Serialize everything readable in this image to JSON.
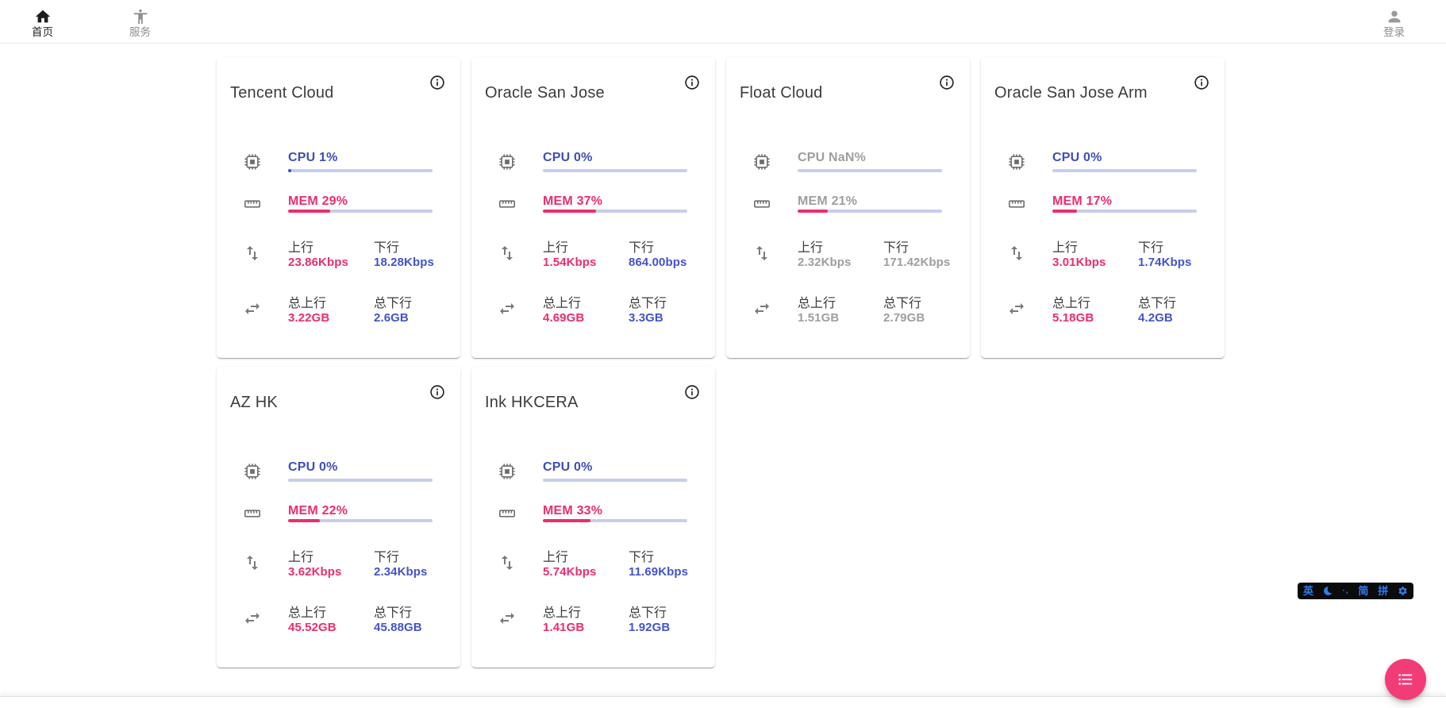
{
  "nav": {
    "items": [
      {
        "label": "首页",
        "icon": "home-icon",
        "active": true
      },
      {
        "label": "服务",
        "icon": "accessibility-icon",
        "active": false
      }
    ],
    "login": {
      "label": "登录",
      "icon": "person-icon"
    }
  },
  "stat_labels": {
    "up": "上行",
    "down": "下行",
    "total_up": "总上行",
    "total_down": "总下行"
  },
  "cards": [
    {
      "title": "Tencent Cloud",
      "cpu_text": "CPU 1%",
      "cpu_pct": 1,
      "mem_text": "MEM 29%",
      "mem_pct": 29,
      "offline": false,
      "up_value": "23.86Kbps",
      "down_value": "18.28Kbps",
      "total_up_value": "3.22GB",
      "total_down_value": "2.6GB"
    },
    {
      "title": "Oracle San Jose",
      "cpu_text": "CPU 0%",
      "cpu_pct": 0,
      "mem_text": "MEM 37%",
      "mem_pct": 37,
      "offline": false,
      "up_value": "1.54Kbps",
      "down_value": "864.00bps",
      "total_up_value": "4.69GB",
      "total_down_value": "3.3GB"
    },
    {
      "title": "Float Cloud",
      "cpu_text": "CPU NaN%",
      "cpu_pct": 0,
      "mem_text": "MEM 21%",
      "mem_pct": 21,
      "offline": true,
      "up_value": "2.32Kbps",
      "down_value": "171.42Kbps",
      "total_up_value": "1.51GB",
      "total_down_value": "2.79GB"
    },
    {
      "title": "Oracle San Jose Arm",
      "cpu_text": "CPU 0%",
      "cpu_pct": 0,
      "mem_text": "MEM 17%",
      "mem_pct": 17,
      "offline": false,
      "up_value": "3.01Kbps",
      "down_value": "1.74Kbps",
      "total_up_value": "5.18GB",
      "total_down_value": "4.2GB"
    },
    {
      "title": "AZ HK",
      "cpu_text": "CPU 0%",
      "cpu_pct": 0,
      "mem_text": "MEM 22%",
      "mem_pct": 22,
      "offline": false,
      "up_value": "3.62Kbps",
      "down_value": "2.34Kbps",
      "total_up_value": "45.52GB",
      "total_down_value": "45.88GB"
    },
    {
      "title": "Ink HKCERA",
      "cpu_text": "CPU 0%",
      "cpu_pct": 0,
      "mem_text": "MEM 33%",
      "mem_pct": 33,
      "offline": false,
      "up_value": "5.74Kbps",
      "down_value": "11.69Kbps",
      "total_up_value": "1.41GB",
      "total_down_value": "1.92GB"
    }
  ],
  "ime": {
    "lang": "英",
    "punct": "·,",
    "simplified": "简",
    "pinyin": "拼"
  },
  "colors": {
    "accent_blue": "#3e4fb8",
    "value_blue": "#4353cd",
    "accent_pink": "#ec2d6e",
    "bar_track": "#c8cdec",
    "offline_gray": "#9e9e9e",
    "fab_pink": "#f23c78",
    "ime_blue": "#2e7bf6"
  }
}
